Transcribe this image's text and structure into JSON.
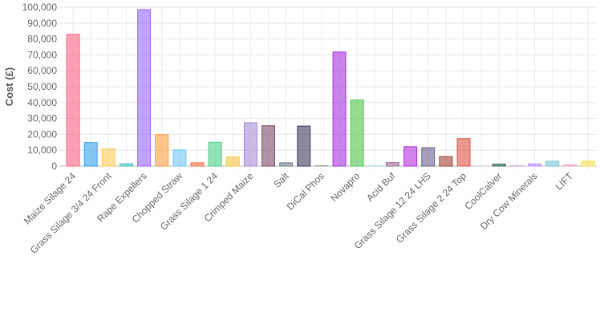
{
  "chart_data": {
    "type": "bar",
    "ylabel": "Cost (£)",
    "ylim": [
      0,
      100000
    ],
    "y_ticks": [
      "0",
      "10,000",
      "20,000",
      "30,000",
      "40,000",
      "50,000",
      "60,000",
      "70,000",
      "80,000",
      "90,000",
      "100,000"
    ],
    "grid": true,
    "categories": [
      "Maize Silage 24",
      "",
      "Grass Silage 3/4 24 Front",
      "",
      "Rape Expellers",
      "",
      "Chopped Straw",
      "",
      "Grass Silage 1 24",
      "",
      "Crimped Maize",
      "",
      "Salt",
      "",
      "DiCal Phos",
      "",
      "Novapro",
      "",
      "Acid Buf",
      "",
      "Grass Silage 12 24 LHS",
      "",
      "Grass Silage 2 24 Top",
      "",
      "CoolCalver",
      "",
      "Dry Cow Minerals",
      "",
      "LIFT",
      ""
    ],
    "values": [
      83000,
      14800,
      10800,
      1500,
      98500,
      19800,
      10200,
      2100,
      15000,
      5800,
      27300,
      25400,
      2100,
      25200,
      300,
      71800,
      41600,
      200,
      2200,
      12200,
      11600,
      6000,
      17300,
      100,
      1300,
      200,
      1400,
      3000,
      800,
      3100
    ],
    "colors": [
      "#ff6384",
      "#36a2eb",
      "#ffcd56",
      "#4bc0c0",
      "#9966ff",
      "#ff9f40",
      "#6cc9f7",
      "#ff7043",
      "#4bd08a",
      "#f5c542",
      "#a98ad9",
      "#7d4b6b",
      "#6f7f8f",
      "#3a3e5c",
      "#a0a0a0",
      "#a72ee0",
      "#4fc64f",
      "#a8d8ea",
      "#9e6b99",
      "#b62ee0",
      "#6a6090",
      "#a04530",
      "#dd5544",
      "#cccccc",
      "#2f6b55",
      "#dd99ee",
      "#b890f0",
      "#7ac4d6",
      "#f0a8b8",
      "#f5e050"
    ]
  }
}
